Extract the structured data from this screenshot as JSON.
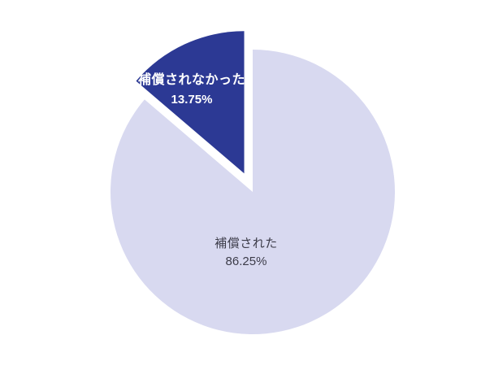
{
  "chart_data": {
    "type": "pie",
    "title": "",
    "background": "#ffffff",
    "legend": "none",
    "start_angle_deg": 0,
    "direction": "clockwise",
    "categories": [
      "補償された",
      "補償されなかった"
    ],
    "values": [
      86.25,
      13.75
    ],
    "slices": [
      {
        "label": "補償された",
        "value": 86.25,
        "pct_label": "86.25%",
        "color": "#d8d9f0",
        "label_color": "#3c3c49",
        "explode": 0
      },
      {
        "label": "補償されなかった",
        "value": 13.75,
        "pct_label": "13.75%",
        "color": "#2c3994",
        "label_color": "#ffffff",
        "explode": 25
      }
    ]
  }
}
